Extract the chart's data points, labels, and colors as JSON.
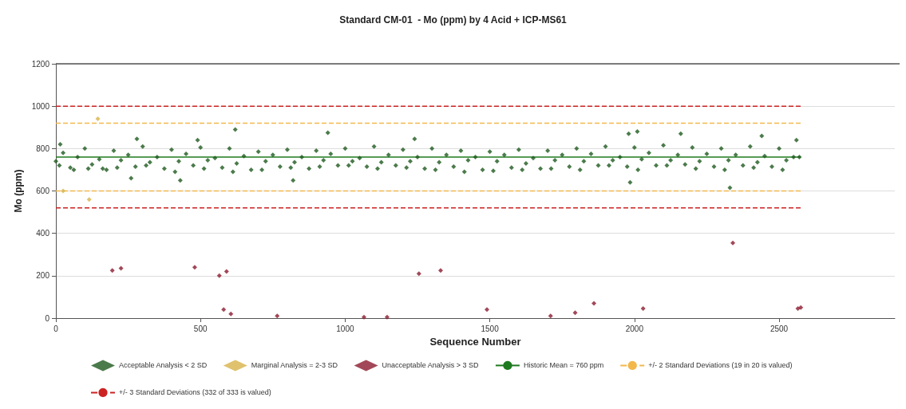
{
  "chart_data": {
    "type": "scatter",
    "title": "Standard CM-01  - Mo (ppm) by 4 Acid + ICP-MS61",
    "xlabel": "Sequence Number",
    "ylabel": "Mo (ppm)",
    "xlim": [
      0,
      2900
    ],
    "xticks": [
      0,
      500,
      1000,
      1500,
      2000,
      2500
    ],
    "ylim": [
      0,
      1200
    ],
    "yticks": [
      0,
      200,
      400,
      600,
      800,
      1000,
      1200
    ],
    "grid": "y",
    "legend": "bottom",
    "marker": "diamond",
    "series": [
      {
        "name": "Acceptable Analysis < 2 SD",
        "color": "#1e5a1e",
        "x": [
          0,
          25,
          50,
          75,
          100,
          125,
          150,
          175,
          200,
          225,
          250,
          275,
          300,
          325,
          350,
          375,
          400,
          425,
          450,
          475,
          500,
          525,
          550,
          575,
          600,
          625,
          650,
          675,
          700,
          725,
          750,
          775,
          800,
          825,
          850,
          875,
          900,
          925,
          950,
          975,
          1000,
          1025,
          1050,
          1075,
          1100,
          1125,
          1150,
          1175,
          1200,
          1225,
          1250,
          1275,
          1300,
          1325,
          1350,
          1375,
          1400,
          1425,
          1450,
          1475,
          1500,
          1525,
          1550,
          1575,
          1600,
          1625,
          1650,
          1675,
          1700,
          1725,
          1750,
          1775,
          1800,
          1825,
          1850,
          1875,
          1900,
          1925,
          1950,
          1975,
          2000,
          2025,
          2050,
          2075,
          2100,
          2125,
          2150,
          2175,
          2200,
          2225,
          2250,
          2275,
          2300,
          2325,
          2350,
          2375,
          2400,
          2425,
          2450,
          2475,
          2500,
          2525,
          2550,
          2570,
          15,
          280,
          490,
          620,
          940,
          1240,
          1980,
          2010,
          2160,
          2330,
          1985,
          260,
          430,
          820,
          2560,
          2440,
          12,
          62,
          112,
          162,
          212,
          312,
          412,
          512,
          612,
          712,
          812,
          912,
          1012,
          1112,
          1212,
          1312,
          1412,
          1512,
          1612,
          1712,
          1812,
          1912,
          2012,
          2112,
          2212,
          2312,
          2412,
          2512
        ],
        "values": [
          740,
          780,
          710,
          760,
          800,
          725,
          750,
          700,
          790,
          745,
          770,
          715,
          810,
          735,
          760,
          705,
          795,
          740,
          775,
          720,
          805,
          745,
          755,
          710,
          800,
          730,
          765,
          700,
          785,
          740,
          770,
          715,
          795,
          735,
          760,
          705,
          790,
          745,
          775,
          720,
          800,
          740,
          755,
          715,
          810,
          735,
          770,
          720,
          795,
          740,
          760,
          705,
          800,
          735,
          770,
          715,
          790,
          745,
          760,
          700,
          785,
          740,
          770,
          710,
          795,
          730,
          755,
          705,
          790,
          745,
          770,
          715,
          800,
          740,
          775,
          720,
          810,
          745,
          760,
          715,
          805,
          750,
          780,
          720,
          815,
          745,
          770,
          725,
          805,
          740,
          775,
          715,
          800,
          745,
          770,
          720,
          810,
          735,
          765,
          715,
          800,
          745,
          760,
          760,
          820,
          845,
          840,
          890,
          875,
          845,
          870,
          880,
          870,
          615,
          640,
          660,
          650,
          650,
          840,
          860,
          720,
          700,
          705,
          705,
          710,
          720,
          690,
          705,
          690,
          700,
          710,
          715,
          720,
          705,
          710,
          700,
          690,
          695,
          700,
          705,
          700,
          720,
          700,
          720,
          705,
          700,
          710,
          700
        ]
      },
      {
        "name": "Marginal Analysis = 2-3 SD",
        "color": "#d8b34a",
        "x": [
          25,
          115,
          145
        ],
        "values": [
          600,
          560,
          940
        ]
      },
      {
        "name": "Unacceptable Analysis > 3 SD",
        "color": "#8b1a2e",
        "x": [
          195,
          225,
          480,
          565,
          590,
          580,
          605,
          765,
          1065,
          1145,
          1255,
          1330,
          1490,
          1710,
          1795,
          1860,
          2030,
          2340,
          2565,
          2575
        ],
        "values": [
          225,
          235,
          240,
          200,
          220,
          40,
          20,
          10,
          5,
          5,
          210,
          225,
          40,
          10,
          25,
          70,
          45,
          355,
          45,
          50
        ]
      }
    ],
    "ref_lines": [
      {
        "axis": "y",
        "value": 760,
        "label": "Historic Mean = 760 ppm",
        "color": "#1e7a1e",
        "line_style": "solid"
      },
      {
        "axis": "y",
        "value": 920,
        "label": "+/- 2 Standard Deviations (19 in 20 is valued)",
        "color": "#f2b84b",
        "line_style": "dashed"
      },
      {
        "axis": "y",
        "value": 600,
        "color": "#f2b84b",
        "line_style": "dashed"
      },
      {
        "axis": "y",
        "value": 1000,
        "label": "+/- 3 Standard Deviations (332 of 333 is valued)",
        "color": "#cc2222",
        "line_style": "dashed"
      },
      {
        "axis": "y",
        "value": 520,
        "color": "#cc2222",
        "line_style": "dashed"
      }
    ]
  }
}
